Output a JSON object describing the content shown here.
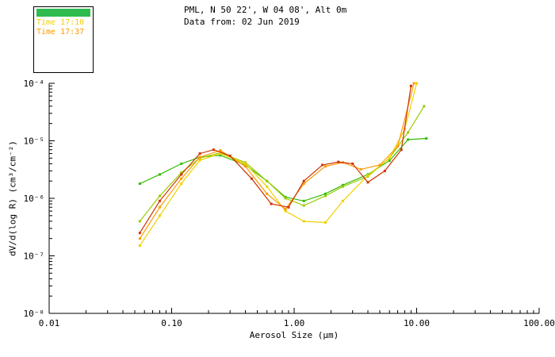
{
  "header": {
    "line1": "PML, N 50 22', W 04 08', Alt 0m",
    "line2": "Data from: 02 Jun 2019"
  },
  "legend": {
    "header_color": "#2fbb4f",
    "entries": [
      {
        "label": "Time 17:10",
        "color": "#f0d000"
      },
      {
        "label": "Time 17:37",
        "color": "#ff9900"
      }
    ]
  },
  "chart_data": {
    "type": "line",
    "title": "",
    "xlabel": "Aerosol Size (μm)",
    "ylabel": "dV/d(log R) (cm³/cm⁻²)",
    "x_scale": "log",
    "y_scale": "log",
    "xlim": [
      0.01,
      100
    ],
    "ylim": [
      1e-08,
      0.0001
    ],
    "grid": false,
    "legend_position": "top-left-box",
    "x_ticks": [
      {
        "value": 0.01,
        "label": "0.01"
      },
      {
        "value": 0.1,
        "label": "0.10"
      },
      {
        "value": 1.0,
        "label": "1.00"
      },
      {
        "value": 10.0,
        "label": "10.00"
      },
      {
        "value": 100.0,
        "label": "100.00"
      }
    ],
    "y_ticks": [
      {
        "value": 0.0001,
        "label": "10⁻⁴"
      },
      {
        "value": 1e-05,
        "label": "10⁻⁵"
      },
      {
        "value": 1e-06,
        "label": "10⁻⁶"
      },
      {
        "value": 1e-07,
        "label": "10⁻⁷"
      },
      {
        "value": 1e-08,
        "label": "10⁻⁸"
      }
    ],
    "series": [
      {
        "name": "green-1",
        "color": "#33bb00",
        "x": [
          0.055,
          0.08,
          0.12,
          0.17,
          0.25,
          0.4,
          0.6,
          0.85,
          1.2,
          1.8,
          2.5,
          4,
          6,
          8.5,
          12
        ],
        "y": [
          1.8e-06,
          2.6e-06,
          4e-06,
          5.2e-06,
          5.6e-06,
          3.8e-06,
          2e-06,
          1.05e-06,
          9e-07,
          1.2e-06,
          1.7e-06,
          2.6e-06,
          4.5e-06,
          1.05e-05,
          1.1e-05
        ]
      },
      {
        "name": "green-2",
        "color": "#99cc00",
        "x": [
          0.055,
          0.08,
          0.12,
          0.17,
          0.25,
          0.4,
          0.6,
          0.85,
          1.2,
          1.8,
          2.5,
          4,
          6,
          8.5,
          11.5
        ],
        "y": [
          4e-07,
          1.1e-06,
          2.8e-06,
          5e-06,
          6.2e-06,
          4.2e-06,
          2e-06,
          1e-06,
          7.5e-07,
          1.1e-06,
          1.6e-06,
          2.4e-06,
          5e-06,
          1.4e-05,
          4e-05
        ]
      },
      {
        "name": "yellow",
        "color": "#f0d000",
        "x": [
          0.055,
          0.08,
          0.12,
          0.17,
          0.25,
          0.4,
          0.6,
          0.85,
          1.2,
          1.8,
          2.5,
          4,
          6,
          8,
          10
        ],
        "y": [
          1.5e-07,
          5e-07,
          1.8e-06,
          4.6e-06,
          6e-06,
          4e-06,
          1.6e-06,
          6e-07,
          4e-07,
          3.8e-07,
          9e-07,
          2.5e-06,
          5e-06,
          1.6e-05,
          0.0001
        ]
      },
      {
        "name": "orange",
        "color": "#ff9900",
        "x": [
          0.055,
          0.08,
          0.12,
          0.17,
          0.25,
          0.4,
          0.6,
          0.85,
          1.2,
          1.8,
          2.5,
          3.5,
          5,
          7,
          9.5
        ],
        "y": [
          2e-07,
          7e-07,
          2.2e-06,
          5.2e-06,
          6.8e-06,
          3.6e-06,
          1.2e-06,
          6.5e-07,
          1.8e-06,
          3.6e-06,
          4.2e-06,
          3.2e-06,
          3.8e-06,
          8e-06,
          0.0001
        ]
      },
      {
        "name": "red-orange",
        "color": "#cc3300",
        "x": [
          0.055,
          0.08,
          0.12,
          0.17,
          0.22,
          0.3,
          0.45,
          0.65,
          0.9,
          1.2,
          1.7,
          2.3,
          3,
          4,
          5.5,
          7.5,
          9
        ],
        "y": [
          2.5e-07,
          9e-07,
          2.6e-06,
          6e-06,
          7e-06,
          5.5e-06,
          2.2e-06,
          8e-07,
          7e-07,
          2e-06,
          3.8e-06,
          4.3e-06,
          4e-06,
          1.9e-06,
          3e-06,
          7e-06,
          9e-05
        ]
      }
    ]
  }
}
